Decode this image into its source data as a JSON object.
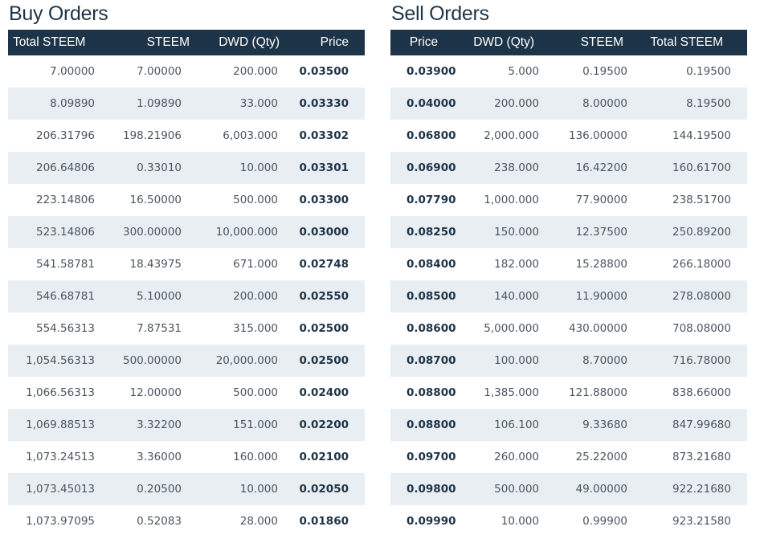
{
  "buy": {
    "title": "Buy Orders",
    "headers": [
      "Total STEEM",
      "STEEM",
      "DWD (Qty)",
      "Price"
    ],
    "rows": [
      [
        "7.00000",
        "7.00000",
        "200.000",
        "0.03500"
      ],
      [
        "8.09890",
        "1.09890",
        "33.000",
        "0.03330"
      ],
      [
        "206.31796",
        "198.21906",
        "6,003.000",
        "0.03302"
      ],
      [
        "206.64806",
        "0.33010",
        "10.000",
        "0.03301"
      ],
      [
        "223.14806",
        "16.50000",
        "500.000",
        "0.03300"
      ],
      [
        "523.14806",
        "300.00000",
        "10,000.000",
        "0.03000"
      ],
      [
        "541.58781",
        "18.43975",
        "671.000",
        "0.02748"
      ],
      [
        "546.68781",
        "5.10000",
        "200.000",
        "0.02550"
      ],
      [
        "554.56313",
        "7.87531",
        "315.000",
        "0.02500"
      ],
      [
        "1,054.56313",
        "500.00000",
        "20,000.000",
        "0.02500"
      ],
      [
        "1,066.56313",
        "12.00000",
        "500.000",
        "0.02400"
      ],
      [
        "1,069.88513",
        "3.32200",
        "151.000",
        "0.02200"
      ],
      [
        "1,073.24513",
        "3.36000",
        "160.000",
        "0.02100"
      ],
      [
        "1,073.45013",
        "0.20500",
        "10.000",
        "0.02050"
      ],
      [
        "1,073.97095",
        "0.52083",
        "28.000",
        "0.01860"
      ]
    ]
  },
  "sell": {
    "title": "Sell Orders",
    "headers": [
      "Price",
      "DWD (Qty)",
      "STEEM",
      "Total STEEM"
    ],
    "rows": [
      [
        "0.03900",
        "5.000",
        "0.19500",
        "0.19500"
      ],
      [
        "0.04000",
        "200.000",
        "8.00000",
        "8.19500"
      ],
      [
        "0.06800",
        "2,000.000",
        "136.00000",
        "144.19500"
      ],
      [
        "0.06900",
        "238.000",
        "16.42200",
        "160.61700"
      ],
      [
        "0.07790",
        "1,000.000",
        "77.90000",
        "238.51700"
      ],
      [
        "0.08250",
        "150.000",
        "12.37500",
        "250.89200"
      ],
      [
        "0.08400",
        "182.000",
        "15.28800",
        "266.18000"
      ],
      [
        "0.08500",
        "140.000",
        "11.90000",
        "278.08000"
      ],
      [
        "0.08600",
        "5,000.000",
        "430.00000",
        "708.08000"
      ],
      [
        "0.08700",
        "100.000",
        "8.70000",
        "716.78000"
      ],
      [
        "0.08800",
        "1,385.000",
        "121.88000",
        "838.66000"
      ],
      [
        "0.08800",
        "106.100",
        "9.33680",
        "847.99680"
      ],
      [
        "0.09700",
        "260.000",
        "25.22000",
        "873.21680"
      ],
      [
        "0.09800",
        "500.000",
        "49.00000",
        "922.21680"
      ],
      [
        "0.09990",
        "10.000",
        "0.99900",
        "923.21580"
      ]
    ]
  },
  "colors": {
    "header_bg": "#1d3448",
    "stripe_bg": "#e9eef2",
    "title_text": "#1d3448"
  }
}
